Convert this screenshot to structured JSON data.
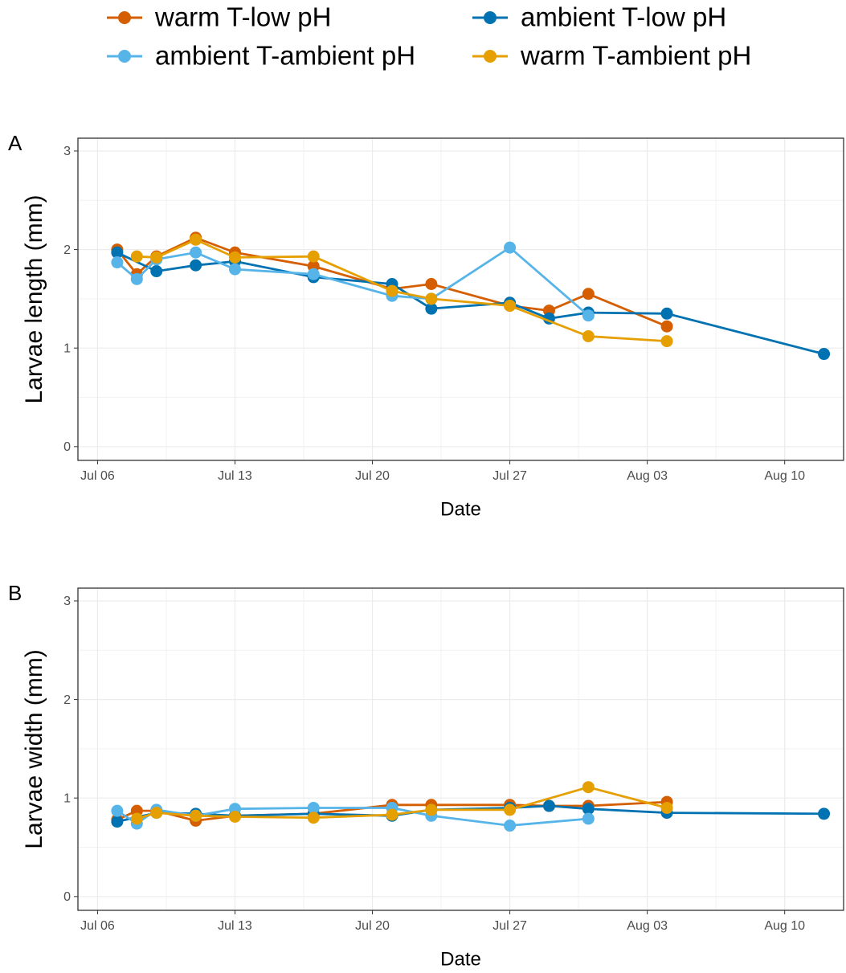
{
  "chart_data": [
    {
      "type": "line",
      "title": "A",
      "x_label": "Date",
      "y_label": "Larvae length (mm)",
      "xlim": [
        "Jul 05",
        "Aug 13"
      ],
      "xticks": [
        "Jul 06",
        "Jul 13",
        "Jul 20",
        "Jul 27",
        "Aug 03",
        "Aug 10"
      ],
      "ylim": [
        -0.14,
        3.13
      ],
      "yticks": [
        0,
        1,
        2,
        3
      ],
      "grid": true,
      "legend": "top",
      "series": [
        {
          "name": "warm T-low pH",
          "color": "#D55E00",
          "x": [
            "Jul 07",
            "Jul 08",
            "Jul 09",
            "Jul 11",
            "Jul 13",
            "Jul 17",
            "Jul 21",
            "Jul 23",
            "Jul 27",
            "Jul 29",
            "Jul 31",
            "Aug 04"
          ],
          "values": [
            2.0,
            1.75,
            1.93,
            2.12,
            1.97,
            1.83,
            1.6,
            1.65,
            1.43,
            1.38,
            1.55,
            1.22
          ]
        },
        {
          "name": "ambient T-low pH",
          "color": "#0072B2",
          "x": [
            "Jul 07",
            "Jul 09",
            "Jul 11",
            "Jul 13",
            "Jul 17",
            "Jul 21",
            "Jul 23",
            "Jul 27",
            "Jul 29",
            "Jul 31",
            "Aug 04",
            "Aug 12"
          ],
          "values": [
            1.97,
            1.78,
            1.84,
            1.88,
            1.72,
            1.65,
            1.4,
            1.46,
            1.3,
            1.36,
            1.35,
            0.94
          ]
        },
        {
          "name": "ambient T-ambient pH",
          "color": "#56B4E9",
          "x": [
            "Jul 07",
            "Jul 08",
            "Jul 09",
            "Jul 11",
            "Jul 13",
            "Jul 17",
            "Jul 21",
            "Jul 23",
            "Jul 27",
            "Jul 31"
          ],
          "values": [
            1.87,
            1.7,
            1.9,
            1.97,
            1.8,
            1.75,
            1.53,
            1.5,
            2.02,
            1.33
          ]
        },
        {
          "name": "warm T-ambient pH",
          "color": "#E69F00",
          "x": [
            "Jul 08",
            "Jul 09",
            "Jul 11",
            "Jul 13",
            "Jul 17",
            "Jul 21",
            "Jul 23",
            "Jul 27",
            "Jul 31",
            "Aug 04"
          ],
          "values": [
            1.93,
            1.92,
            2.1,
            1.92,
            1.93,
            1.58,
            1.5,
            1.43,
            1.12,
            1.07
          ]
        }
      ]
    },
    {
      "type": "line",
      "title": "B",
      "x_label": "Date",
      "y_label": "Larvae width (mm)",
      "xlim": [
        "Jul 05",
        "Aug 13"
      ],
      "xticks": [
        "Jul 06",
        "Jul 13",
        "Jul 20",
        "Jul 27",
        "Aug 03",
        "Aug 10"
      ],
      "ylim": [
        -0.14,
        3.13
      ],
      "yticks": [
        0,
        1,
        2,
        3
      ],
      "grid": true,
      "series": [
        {
          "color": "#D55E00",
          "x": [
            "Jul 07",
            "Jul 08",
            "Jul 09",
            "Jul 11",
            "Jul 13",
            "Jul 17",
            "Jul 21",
            "Jul 23",
            "Jul 27",
            "Jul 29",
            "Jul 31",
            "Aug 04"
          ],
          "values": [
            0.78,
            0.87,
            0.87,
            0.77,
            0.82,
            0.84,
            0.93,
            0.93,
            0.93,
            0.92,
            0.92,
            0.96
          ]
        },
        {
          "color": "#0072B2",
          "x": [
            "Jul 07",
            "Jul 09",
            "Jul 11",
            "Jul 13",
            "Jul 17",
            "Jul 21",
            "Jul 23",
            "Jul 27",
            "Jul 29",
            "Jul 31",
            "Aug 04",
            "Aug 12"
          ],
          "values": [
            0.76,
            0.85,
            0.84,
            0.82,
            0.84,
            0.82,
            0.88,
            0.9,
            0.92,
            0.89,
            0.85,
            0.84
          ]
        },
        {
          "color": "#56B4E9",
          "x": [
            "Jul 07",
            "Jul 08",
            "Jul 09",
            "Jul 11",
            "Jul 13",
            "Jul 17",
            "Jul 21",
            "Jul 23",
            "Jul 27",
            "Jul 31"
          ],
          "values": [
            0.87,
            0.74,
            0.88,
            0.82,
            0.89,
            0.9,
            0.9,
            0.82,
            0.72,
            0.79
          ]
        },
        {
          "color": "#E69F00",
          "x": [
            "Jul 08",
            "Jul 09",
            "Jul 11",
            "Jul 13",
            "Jul 17",
            "Jul 21",
            "Jul 23",
            "Jul 27",
            "Jul 31",
            "Aug 04"
          ],
          "values": [
            0.79,
            0.85,
            0.82,
            0.81,
            0.8,
            0.83,
            0.88,
            0.88,
            1.11,
            0.9
          ]
        }
      ]
    }
  ]
}
